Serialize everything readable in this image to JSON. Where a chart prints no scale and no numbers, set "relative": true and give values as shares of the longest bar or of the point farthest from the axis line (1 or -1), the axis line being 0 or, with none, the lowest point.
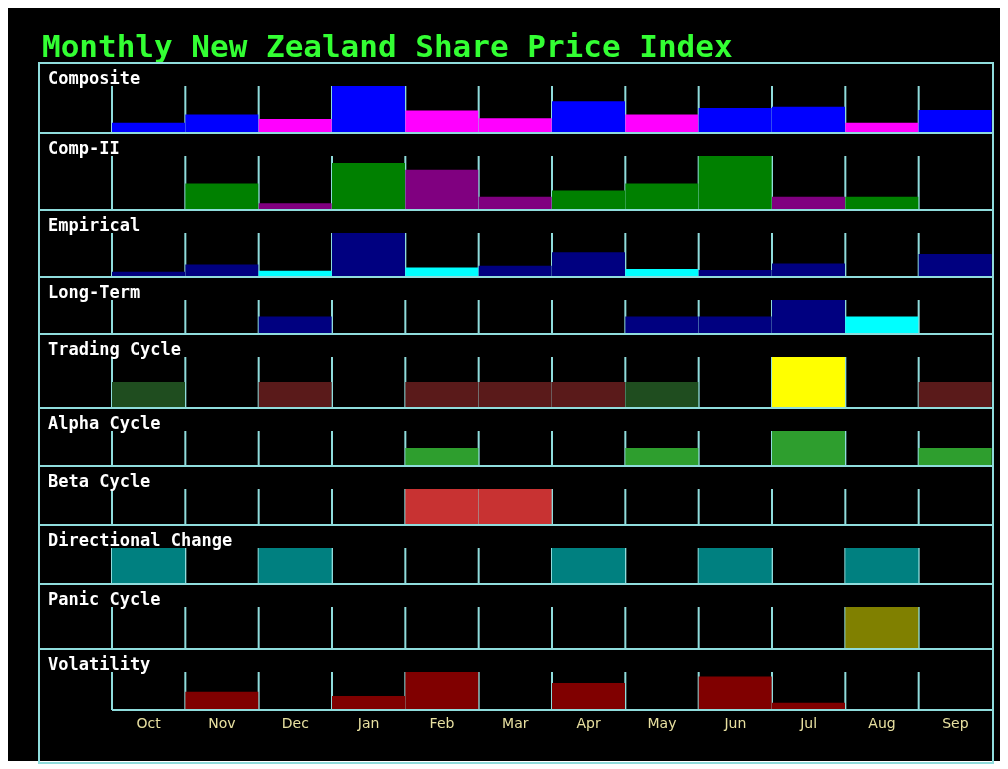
{
  "chart_data": [
    {
      "type": "bar",
      "title": "Monthly New Zealand Share Price Index",
      "ylabel": "Composite",
      "categories": [
        null,
        null,
        null,
        null,
        null,
        null,
        null,
        null,
        null,
        null,
        null,
        null
      ],
      "relative": true,
      "grid": "x",
      "tick_labels": false,
      "values": [
        0.2,
        0.38,
        0.28,
        1,
        0.47,
        0.3,
        0.67,
        0.38,
        0.52,
        0.55,
        0.2,
        0.48
      ],
      "colors": [
        "#0000ff",
        "#0000ff",
        "#ff00ff",
        "#0000ff",
        "#ff00ff",
        "#ff00ff",
        "#0000ff",
        "#ff00ff",
        "#0000ff",
        "#0000ff",
        "#ff00ff",
        "#0000ff"
      ]
    },
    {
      "type": "bar",
      "ylabel": "Comp-II",
      "categories": [
        null,
        null,
        null,
        null,
        null,
        null,
        null,
        null,
        null,
        null,
        null,
        null
      ],
      "relative": true,
      "grid": "x",
      "tick_labels": false,
      "values": [
        0,
        0.48,
        0.11,
        0.87,
        0.74,
        0.23,
        0.35,
        0.48,
        1,
        0.23,
        0.23,
        0
      ],
      "colors": [
        null,
        "#008000",
        "#800080",
        "#008000",
        "#800080",
        "#800080",
        "#008000",
        "#008000",
        "#008000",
        "#800080",
        "#008000",
        null
      ]
    },
    {
      "type": "bar",
      "ylabel": "Empirical",
      "categories": [
        null,
        null,
        null,
        null,
        null,
        null,
        null,
        null,
        null,
        null,
        null,
        null
      ],
      "relative": true,
      "grid": "x",
      "tick_labels": false,
      "values": [
        0.1,
        0.27,
        0.12,
        1,
        0.2,
        0.24,
        0.55,
        0.16,
        0.14,
        0.29,
        0,
        0.51
      ],
      "colors": [
        "#000080",
        "#000080",
        "#00ffff",
        "#000080",
        "#00ffff",
        "#000080",
        "#000080",
        "#00ffff",
        "#000080",
        "#000080",
        null,
        "#000080"
      ]
    },
    {
      "type": "bar",
      "ylabel": "Long-Term",
      "categories": [
        null,
        null,
        null,
        null,
        null,
        null,
        null,
        null,
        null,
        null,
        null,
        null
      ],
      "relative": true,
      "grid": "x",
      "tick_labels": false,
      "values": [
        0,
        0,
        0.5,
        0,
        0,
        0,
        0,
        0.5,
        0.5,
        1,
        0.5,
        0
      ],
      "colors": [
        null,
        null,
        "#000080",
        null,
        null,
        null,
        null,
        "#000080",
        "#000080",
        "#000080",
        "#00ffff",
        null
      ]
    },
    {
      "type": "bar",
      "ylabel": "Trading Cycle",
      "categories": [
        null,
        null,
        null,
        null,
        null,
        null,
        null,
        null,
        null,
        null,
        null,
        null
      ],
      "relative": true,
      "grid": "x",
      "tick_labels": false,
      "values": [
        0.5,
        0,
        0.5,
        0,
        0.5,
        0.5,
        0.5,
        0.5,
        0,
        1,
        0,
        0.5
      ],
      "colors": [
        "#1f4d1f",
        null,
        "#5a1a1a",
        null,
        "#5a1a1a",
        "#5a1a1a",
        "#5a1a1a",
        "#1f4d1f",
        null,
        "#ffff00",
        null,
        "#5a1a1a"
      ]
    },
    {
      "type": "bar",
      "ylabel": "Alpha Cycle",
      "categories": [
        null,
        null,
        null,
        null,
        null,
        null,
        null,
        null,
        null,
        null,
        null,
        null
      ],
      "relative": true,
      "grid": "x",
      "tick_labels": false,
      "values": [
        0,
        0,
        0,
        0,
        0.5,
        0,
        0,
        0.5,
        0,
        1,
        0,
        0.5
      ],
      "colors": [
        null,
        null,
        null,
        null,
        "#2e9e2e",
        null,
        null,
        "#2e9e2e",
        null,
        "#2e9e2e",
        null,
        "#2e9e2e"
      ]
    },
    {
      "type": "bar",
      "ylabel": "Beta Cycle",
      "categories": [
        null,
        null,
        null,
        null,
        null,
        null,
        null,
        null,
        null,
        null,
        null,
        null
      ],
      "relative": true,
      "grid": "x",
      "tick_labels": false,
      "values": [
        0,
        0,
        0,
        0,
        1,
        1,
        0,
        0,
        0,
        0,
        0,
        0
      ],
      "colors": [
        null,
        null,
        null,
        null,
        "#c83232",
        "#c83232",
        null,
        null,
        null,
        null,
        null,
        null
      ]
    },
    {
      "type": "bar",
      "ylabel": "Directional Change",
      "categories": [
        null,
        null,
        null,
        null,
        null,
        null,
        null,
        null,
        null,
        null,
        null,
        null
      ],
      "relative": true,
      "grid": "x",
      "tick_labels": false,
      "values": [
        1,
        0,
        1,
        0,
        0,
        0,
        1,
        0,
        1,
        0,
        1,
        0
      ],
      "colors": [
        "#008080",
        null,
        "#008080",
        null,
        null,
        null,
        "#008080",
        null,
        "#008080",
        null,
        "#008080",
        null
      ]
    },
    {
      "type": "bar",
      "ylabel": "Panic Cycle",
      "categories": [
        null,
        null,
        null,
        null,
        null,
        null,
        null,
        null,
        null,
        null,
        null,
        null
      ],
      "relative": true,
      "grid": "x",
      "tick_labels": false,
      "values": [
        0,
        0,
        0,
        0,
        0,
        0,
        0,
        0,
        0,
        0,
        1,
        0
      ],
      "colors": [
        null,
        null,
        null,
        null,
        null,
        null,
        null,
        null,
        null,
        null,
        "#808000",
        null
      ]
    },
    {
      "type": "bar",
      "ylabel": "Volatility",
      "categories": [
        "Oct",
        "Nov",
        "Dec",
        "Jan",
        "Feb",
        "Mar",
        "Apr",
        "May",
        "Jun",
        "Jul",
        "Aug",
        "Sep"
      ],
      "relative": true,
      "grid": "x",
      "tick_labels": "x",
      "values": [
        0,
        0.48,
        0,
        0.37,
        1,
        0,
        0.71,
        0,
        0.88,
        0.19,
        0,
        0
      ],
      "colors": [
        null,
        "#800000",
        null,
        "#800000",
        "#800000",
        null,
        "#800000",
        null,
        "#800000",
        "#800000",
        null,
        null
      ]
    }
  ]
}
